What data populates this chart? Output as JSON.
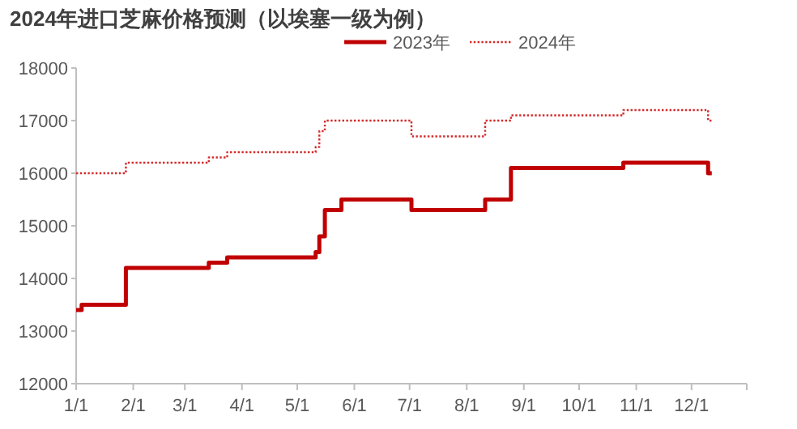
{
  "chart_data": {
    "type": "step",
    "title": "2024年进口芝麻价格预测（以埃塞一级为例）",
    "series": [
      {
        "name": "2023年",
        "color": "#c00000",
        "line_style": "solid",
        "x": [
          "--01-01",
          "--01-04",
          "--01-28",
          "--03-14",
          "--03-24",
          "--05-11",
          "--05-13",
          "--05-16",
          "--05-25",
          "--07-02",
          "--08-11",
          "--08-25",
          "--10-25",
          "--12-10",
          "--12-12"
        ],
        "values": [
          13400,
          13500,
          14200,
          14300,
          14400,
          14500,
          14800,
          15300,
          15500,
          15300,
          15500,
          16100,
          16200,
          16000,
          16000
        ]
      },
      {
        "name": "2024年",
        "color": "#d42a2a",
        "line_style": "dotted",
        "x": [
          "--01-01",
          "--01-28",
          "--03-14",
          "--03-24",
          "--05-11",
          "--05-13",
          "--05-16",
          "--07-02",
          "--08-11",
          "--08-25",
          "--10-25",
          "--12-10",
          "--12-12"
        ],
        "values": [
          16000,
          16200,
          16300,
          16400,
          16500,
          16800,
          17000,
          16700,
          17000,
          17100,
          17200,
          17000,
          17000
        ]
      }
    ],
    "xlim": [
      "--01-01",
      "--12-31"
    ],
    "xticks": [
      {
        "value": "--01-01",
        "label": "1/1"
      },
      {
        "value": "--02-01",
        "label": "2/1"
      },
      {
        "value": "--03-01",
        "label": "3/1"
      },
      {
        "value": "--04-01",
        "label": "4/1"
      },
      {
        "value": "--05-01",
        "label": "5/1"
      },
      {
        "value": "--06-01",
        "label": "6/1"
      },
      {
        "value": "--07-01",
        "label": "7/1"
      },
      {
        "value": "--08-01",
        "label": "8/1"
      },
      {
        "value": "--09-01",
        "label": "9/1"
      },
      {
        "value": "--10-01",
        "label": "10/1"
      },
      {
        "value": "--11-01",
        "label": "11/1"
      },
      {
        "value": "--12-01",
        "label": "12/1"
      }
    ],
    "ylim": [
      12000,
      18000
    ],
    "yticks": [
      12000,
      13000,
      14000,
      15000,
      16000,
      17000,
      18000
    ],
    "grid": false,
    "legend": "top"
  }
}
